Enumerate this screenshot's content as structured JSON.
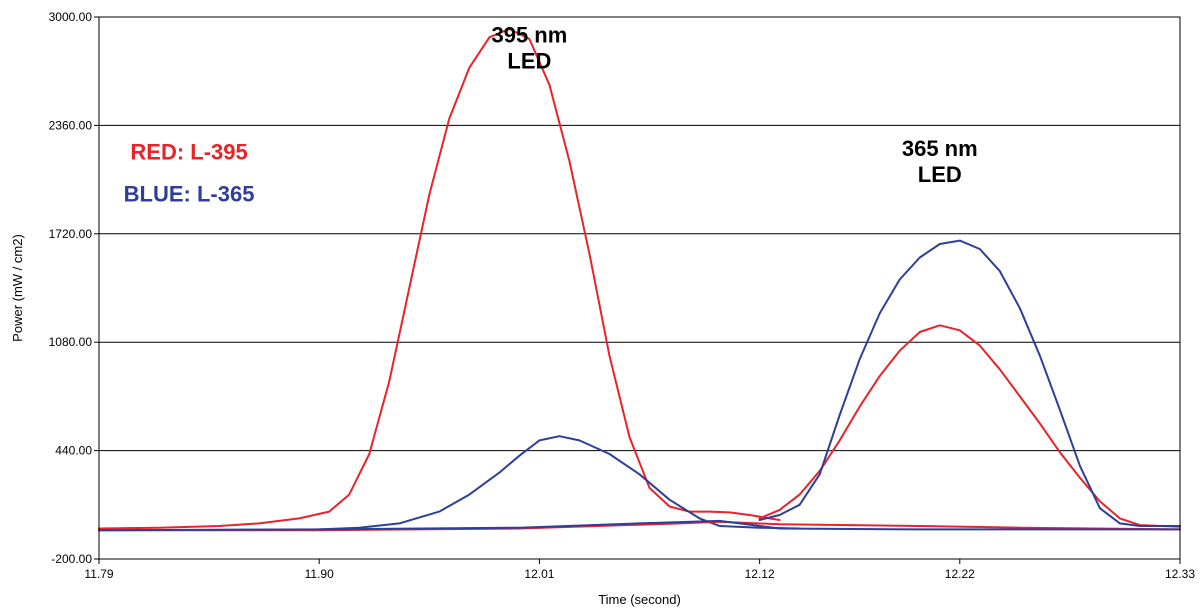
{
  "chart_data": {
    "type": "line",
    "xlabel": "Time (second)",
    "ylabel": "Power (mW / cm2)",
    "xlim": [
      11.79,
      12.33
    ],
    "ylim": [
      -200,
      3000
    ],
    "x_ticks": [
      "11.79",
      "11.90",
      "12.01",
      "12.12",
      "12.22",
      "12.33"
    ],
    "y_ticks": [
      "3000.00",
      "2360.00",
      "1720.00",
      "1080.00",
      "440.00",
      "-200.00"
    ],
    "grid": "horizontal",
    "colors": {
      "red": "#e8232a",
      "blue": "#2e3f9a"
    },
    "annotations": [
      {
        "lines": [
          "395 nm",
          "LED"
        ],
        "color": "#000000",
        "x": 12.005,
        "y": 2850
      },
      {
        "lines": [
          "365 nm",
          "LED"
        ],
        "color": "#000000",
        "x": 12.21,
        "y": 2180
      },
      {
        "lines": [
          "RED: L-395"
        ],
        "color": "#e8232a",
        "x": 11.835,
        "y": 2160
      },
      {
        "lines": [
          "BLUE: L-365"
        ],
        "color": "#2e3f9a",
        "x": 11.835,
        "y": 1910
      }
    ],
    "series": [
      {
        "color": "#e8232a",
        "x": [
          11.79,
          11.82,
          11.85,
          11.87,
          11.89,
          11.905,
          11.915,
          11.925,
          11.935,
          11.945,
          11.955,
          11.965,
          11.975,
          11.985,
          11.995,
          12.005,
          12.015,
          12.025,
          12.035,
          12.045,
          12.055,
          12.065,
          12.075,
          12.085,
          12.095,
          12.105,
          12.115,
          12.125,
          12.13
        ],
        "y": [
          -20,
          -15,
          -5,
          10,
          40,
          80,
          180,
          420,
          850,
          1400,
          1950,
          2400,
          2700,
          2880,
          2930,
          2870,
          2600,
          2150,
          1600,
          1000,
          520,
          220,
          110,
          80,
          80,
          75,
          60,
          40,
          30
        ]
      },
      {
        "color": "#e8232a",
        "x": [
          12.12,
          12.13,
          12.14,
          12.15,
          12.16,
          12.17,
          12.18,
          12.19,
          12.2,
          12.21,
          12.22,
          12.23,
          12.24,
          12.25,
          12.26,
          12.27,
          12.28,
          12.29,
          12.3,
          12.31,
          12.33
        ],
        "y": [
          40,
          90,
          180,
          320,
          500,
          700,
          880,
          1030,
          1140,
          1180,
          1150,
          1060,
          920,
          760,
          600,
          430,
          280,
          140,
          40,
          0,
          -10
        ]
      },
      {
        "color": "#2e3f9a",
        "x": [
          11.79,
          11.85,
          11.9,
          11.92,
          11.94,
          11.96,
          11.975,
          11.99,
          12.0,
          12.01,
          12.02,
          12.03,
          12.045,
          12.06,
          12.075,
          12.09,
          12.1,
          12.12,
          12.14
        ],
        "y": [
          -30,
          -28,
          -25,
          -15,
          10,
          80,
          180,
          310,
          410,
          500,
          525,
          500,
          420,
          300,
          150,
          40,
          -5,
          -15,
          -20
        ]
      },
      {
        "color": "#2e3f9a",
        "x": [
          12.12,
          12.13,
          12.14,
          12.15,
          12.16,
          12.17,
          12.18,
          12.19,
          12.2,
          12.21,
          12.22,
          12.23,
          12.24,
          12.25,
          12.26,
          12.27,
          12.28,
          12.29,
          12.3,
          12.31,
          12.33
        ],
        "y": [
          30,
          60,
          120,
          300,
          650,
          980,
          1250,
          1450,
          1580,
          1660,
          1680,
          1630,
          1500,
          1280,
          1000,
          680,
          350,
          100,
          10,
          -5,
          -5
        ]
      },
      {
        "color": "#e8232a",
        "x": [
          11.79,
          11.9,
          12.0,
          12.08,
          12.1,
          12.13,
          12.2,
          12.25,
          12.33
        ],
        "y": [
          -30,
          -30,
          -20,
          10,
          20,
          5,
          -5,
          -15,
          -25
        ]
      },
      {
        "color": "#2e3f9a",
        "x": [
          11.79,
          11.9,
          12.0,
          12.06,
          12.1,
          12.13,
          12.2,
          12.27,
          12.33
        ],
        "y": [
          -30,
          -25,
          -15,
          10,
          25,
          -20,
          -25,
          -25,
          -25
        ]
      }
    ]
  }
}
